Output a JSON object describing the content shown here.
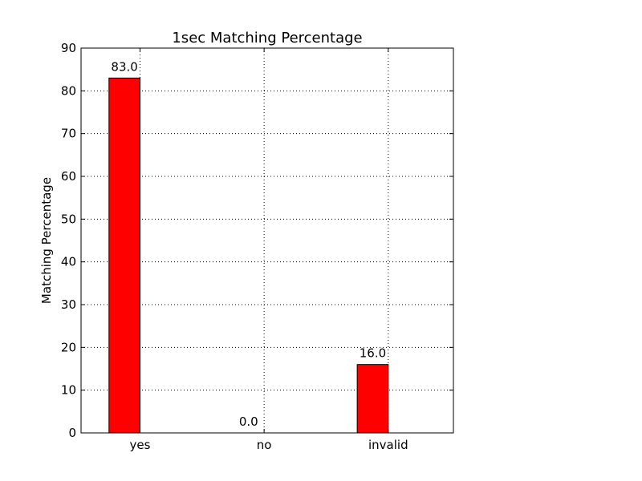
{
  "chart_data": {
    "type": "bar",
    "title": "1sec Matching Percentage",
    "xlabel": "",
    "ylabel": "Matching Percentage",
    "categories": [
      "yes",
      "no",
      "invalid"
    ],
    "values": [
      83.0,
      0.0,
      16.0
    ],
    "value_labels": [
      "83.0",
      "0.0",
      "16.0"
    ],
    "ylim": [
      0,
      90
    ],
    "yticks": [
      0,
      10,
      20,
      30,
      40,
      50,
      60,
      70,
      80,
      90
    ],
    "bar_color": "#ff0000",
    "grid": true,
    "legend": "none"
  }
}
